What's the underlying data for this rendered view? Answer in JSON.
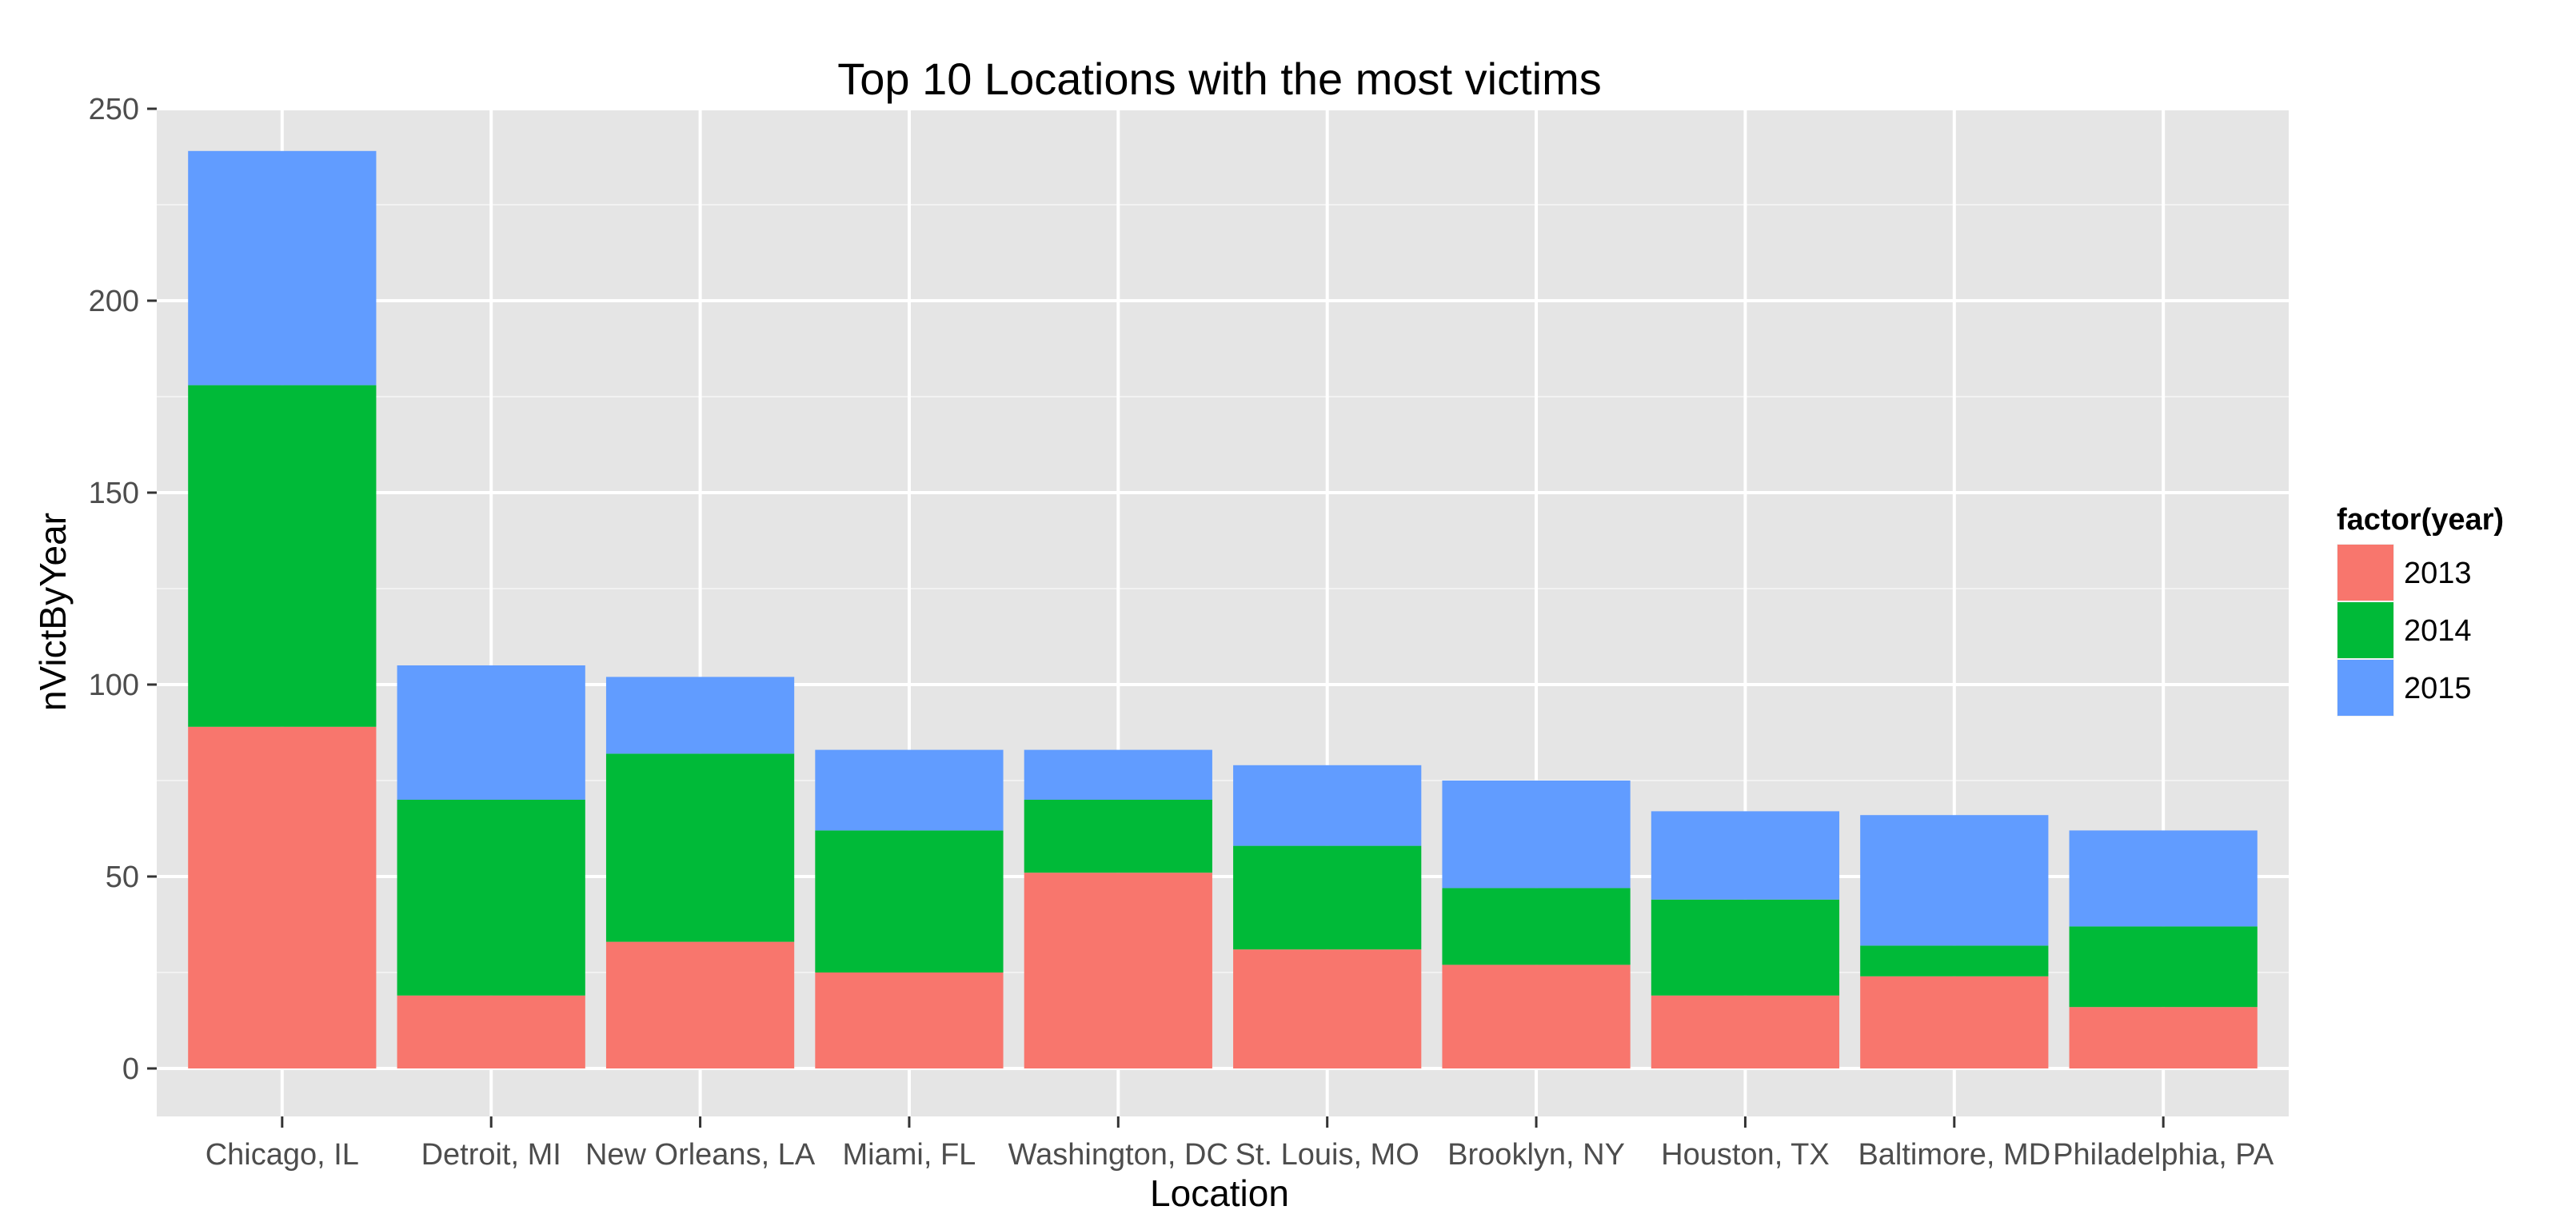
{
  "chart_data": {
    "type": "bar",
    "stacked": true,
    "title": "Top 10 Locations with the most victims",
    "xlabel": "Location",
    "ylabel": "nVictByYear",
    "ylim": [
      -12.5,
      250
    ],
    "yticks": [
      0,
      50,
      100,
      150,
      200,
      250
    ],
    "grid": true,
    "legend_position": "right",
    "legend_title": "factor(year)",
    "categories": [
      "Chicago, IL",
      "Detroit, MI",
      "New Orleans, LA",
      "Miami, FL",
      "Washington, DC",
      "St. Louis, MO",
      "Brooklyn, NY",
      "Houston, TX",
      "Baltimore, MD",
      "Philadelphia, PA"
    ],
    "series": [
      {
        "name": "2013",
        "color": "#F8766D",
        "values": [
          89,
          19,
          33,
          25,
          51,
          31,
          27,
          19,
          24,
          16
        ]
      },
      {
        "name": "2014",
        "color": "#00BA38",
        "values": [
          89,
          51,
          49,
          37,
          19,
          27,
          20,
          25,
          8,
          21
        ]
      },
      {
        "name": "2015",
        "color": "#619CFF",
        "values": [
          61,
          35,
          20,
          21,
          13,
          21,
          28,
          23,
          34,
          25
        ]
      }
    ],
    "panel_color": "#E5E5E5",
    "grid_color": "#FFFFFF",
    "tick_text_color": "#4D4D4D"
  }
}
